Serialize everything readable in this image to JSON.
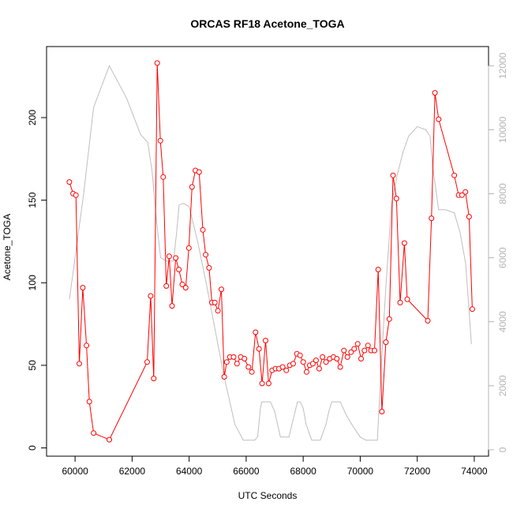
{
  "chart_data": {
    "type": "line",
    "title": "ORCAS RF18 Acetone_TOGA",
    "xlabel": "UTC Seconds",
    "ylabel": "Acetone_TOGA",
    "xlim": [
      59000,
      74500
    ],
    "ylim": [
      -5,
      243
    ],
    "y2lim": [
      -200,
      12600
    ],
    "x_ticks": [
      60000,
      62000,
      64000,
      66000,
      68000,
      70000,
      72000,
      74000
    ],
    "x_tick_labels": [
      "60000",
      "62000",
      "64000",
      "66000",
      "68000",
      "70000",
      "72000",
      "74000"
    ],
    "y_ticks": [
      0,
      50,
      100,
      150,
      200
    ],
    "y_tick_labels": [
      "0",
      "50",
      "100",
      "150",
      "200"
    ],
    "y2_ticks": [
      0,
      2000,
      4000,
      6000,
      8000,
      10000,
      12000
    ],
    "y2_tick_labels": [
      "0",
      "2000",
      "4000",
      "6000",
      "8000",
      "10000",
      "12000"
    ],
    "grid": false,
    "colors": {
      "acetone": "#ff0000",
      "altitude": "#bebebe",
      "frame": "#000000",
      "right_axis": "#b4b4b4"
    },
    "series": [
      {
        "axis": "left",
        "style": "line+points",
        "x": [
          59800,
          59930,
          60030,
          60150,
          60270,
          60400,
          60500,
          60650,
          61200,
          62530,
          62650,
          62760,
          62880,
          62990,
          63090,
          63200,
          63300,
          63400,
          63530,
          63640,
          63760,
          63880,
          63990,
          64100,
          64220,
          64350,
          64480,
          64580,
          64700,
          64800,
          64900,
          65010,
          65130,
          65230,
          65320,
          65430,
          65560,
          65680,
          65810,
          65940,
          66080,
          66200,
          66330,
          66450,
          66560,
          66680,
          66790,
          66910,
          67030,
          67150,
          67280,
          67410,
          67530,
          67650,
          67780,
          67890,
          68000,
          68120,
          68230,
          68340,
          68450,
          68560,
          68680,
          68800,
          68930,
          69060,
          69180,
          69300,
          69430,
          69550,
          69680,
          69790,
          69910,
          70030,
          70150,
          70270,
          70380,
          70500,
          70630,
          70760,
          70900,
          71020,
          71150,
          71270,
          71400,
          71550,
          71650,
          72370,
          72500,
          72620,
          72750,
          73300,
          73450,
          73570,
          73690,
          73820,
          73930
        ],
        "y": [
          161,
          154,
          153,
          51,
          97,
          62,
          28,
          9,
          5,
          52,
          92,
          42,
          233,
          186,
          164,
          98,
          116,
          86,
          115,
          108,
          99,
          97,
          121,
          158,
          168,
          167,
          132,
          117,
          109,
          88,
          88,
          83,
          96,
          43,
          52,
          55,
          55,
          51,
          55,
          54,
          49,
          46,
          70,
          60,
          39,
          65,
          39,
          47,
          48,
          48,
          49,
          47,
          50,
          51,
          57,
          56,
          52,
          46,
          50,
          51,
          53,
          48,
          55,
          52,
          54,
          55,
          54,
          49,
          59,
          55,
          58,
          60,
          63,
          54,
          59,
          62,
          59,
          59,
          108,
          22,
          64,
          78,
          165,
          151,
          88,
          124,
          90,
          77,
          139,
          215,
          199,
          165,
          153,
          153,
          155,
          140,
          84
        ]
      },
      {
        "axis": "right",
        "style": "line",
        "x": [
          59800,
          60000,
          60300,
          60650,
          61200,
          61800,
          62300,
          62550,
          62700,
          62850,
          63000,
          63200,
          63450,
          63550,
          63650,
          63800,
          64000,
          64300,
          64600,
          64900,
          65200,
          65600,
          65900,
          66200,
          66300,
          66400,
          66500,
          66550,
          66650,
          66850,
          67000,
          67100,
          67200,
          67300,
          67500,
          67800,
          67900,
          68000,
          68100,
          68300,
          68600,
          68800,
          68900,
          69000,
          69100,
          69300,
          69500,
          69700,
          70000,
          70200,
          70400,
          70600,
          70750,
          70900,
          71100,
          71300,
          71500,
          71700,
          72000,
          72300,
          72450,
          72550,
          72750,
          73000,
          73300,
          73500,
          73700,
          73900
        ],
        "y": [
          4700,
          6000,
          8000,
          10700,
          12000,
          11000,
          9850,
          9600,
          8700,
          7200,
          6000,
          5900,
          5900,
          6700,
          7650,
          7700,
          7600,
          6500,
          5200,
          3800,
          2400,
          800,
          300,
          300,
          300,
          400,
          1300,
          1500,
          1500,
          1500,
          1200,
          800,
          400,
          400,
          400,
          1500,
          1500,
          1300,
          800,
          300,
          300,
          800,
          1200,
          1500,
          1500,
          1500,
          1100,
          800,
          400,
          300,
          300,
          300,
          2800,
          5100,
          7700,
          8600,
          9300,
          9800,
          10100,
          10000,
          9800,
          8800,
          7500,
          7500,
          7400,
          6800,
          5800,
          3300
        ]
      }
    ]
  }
}
